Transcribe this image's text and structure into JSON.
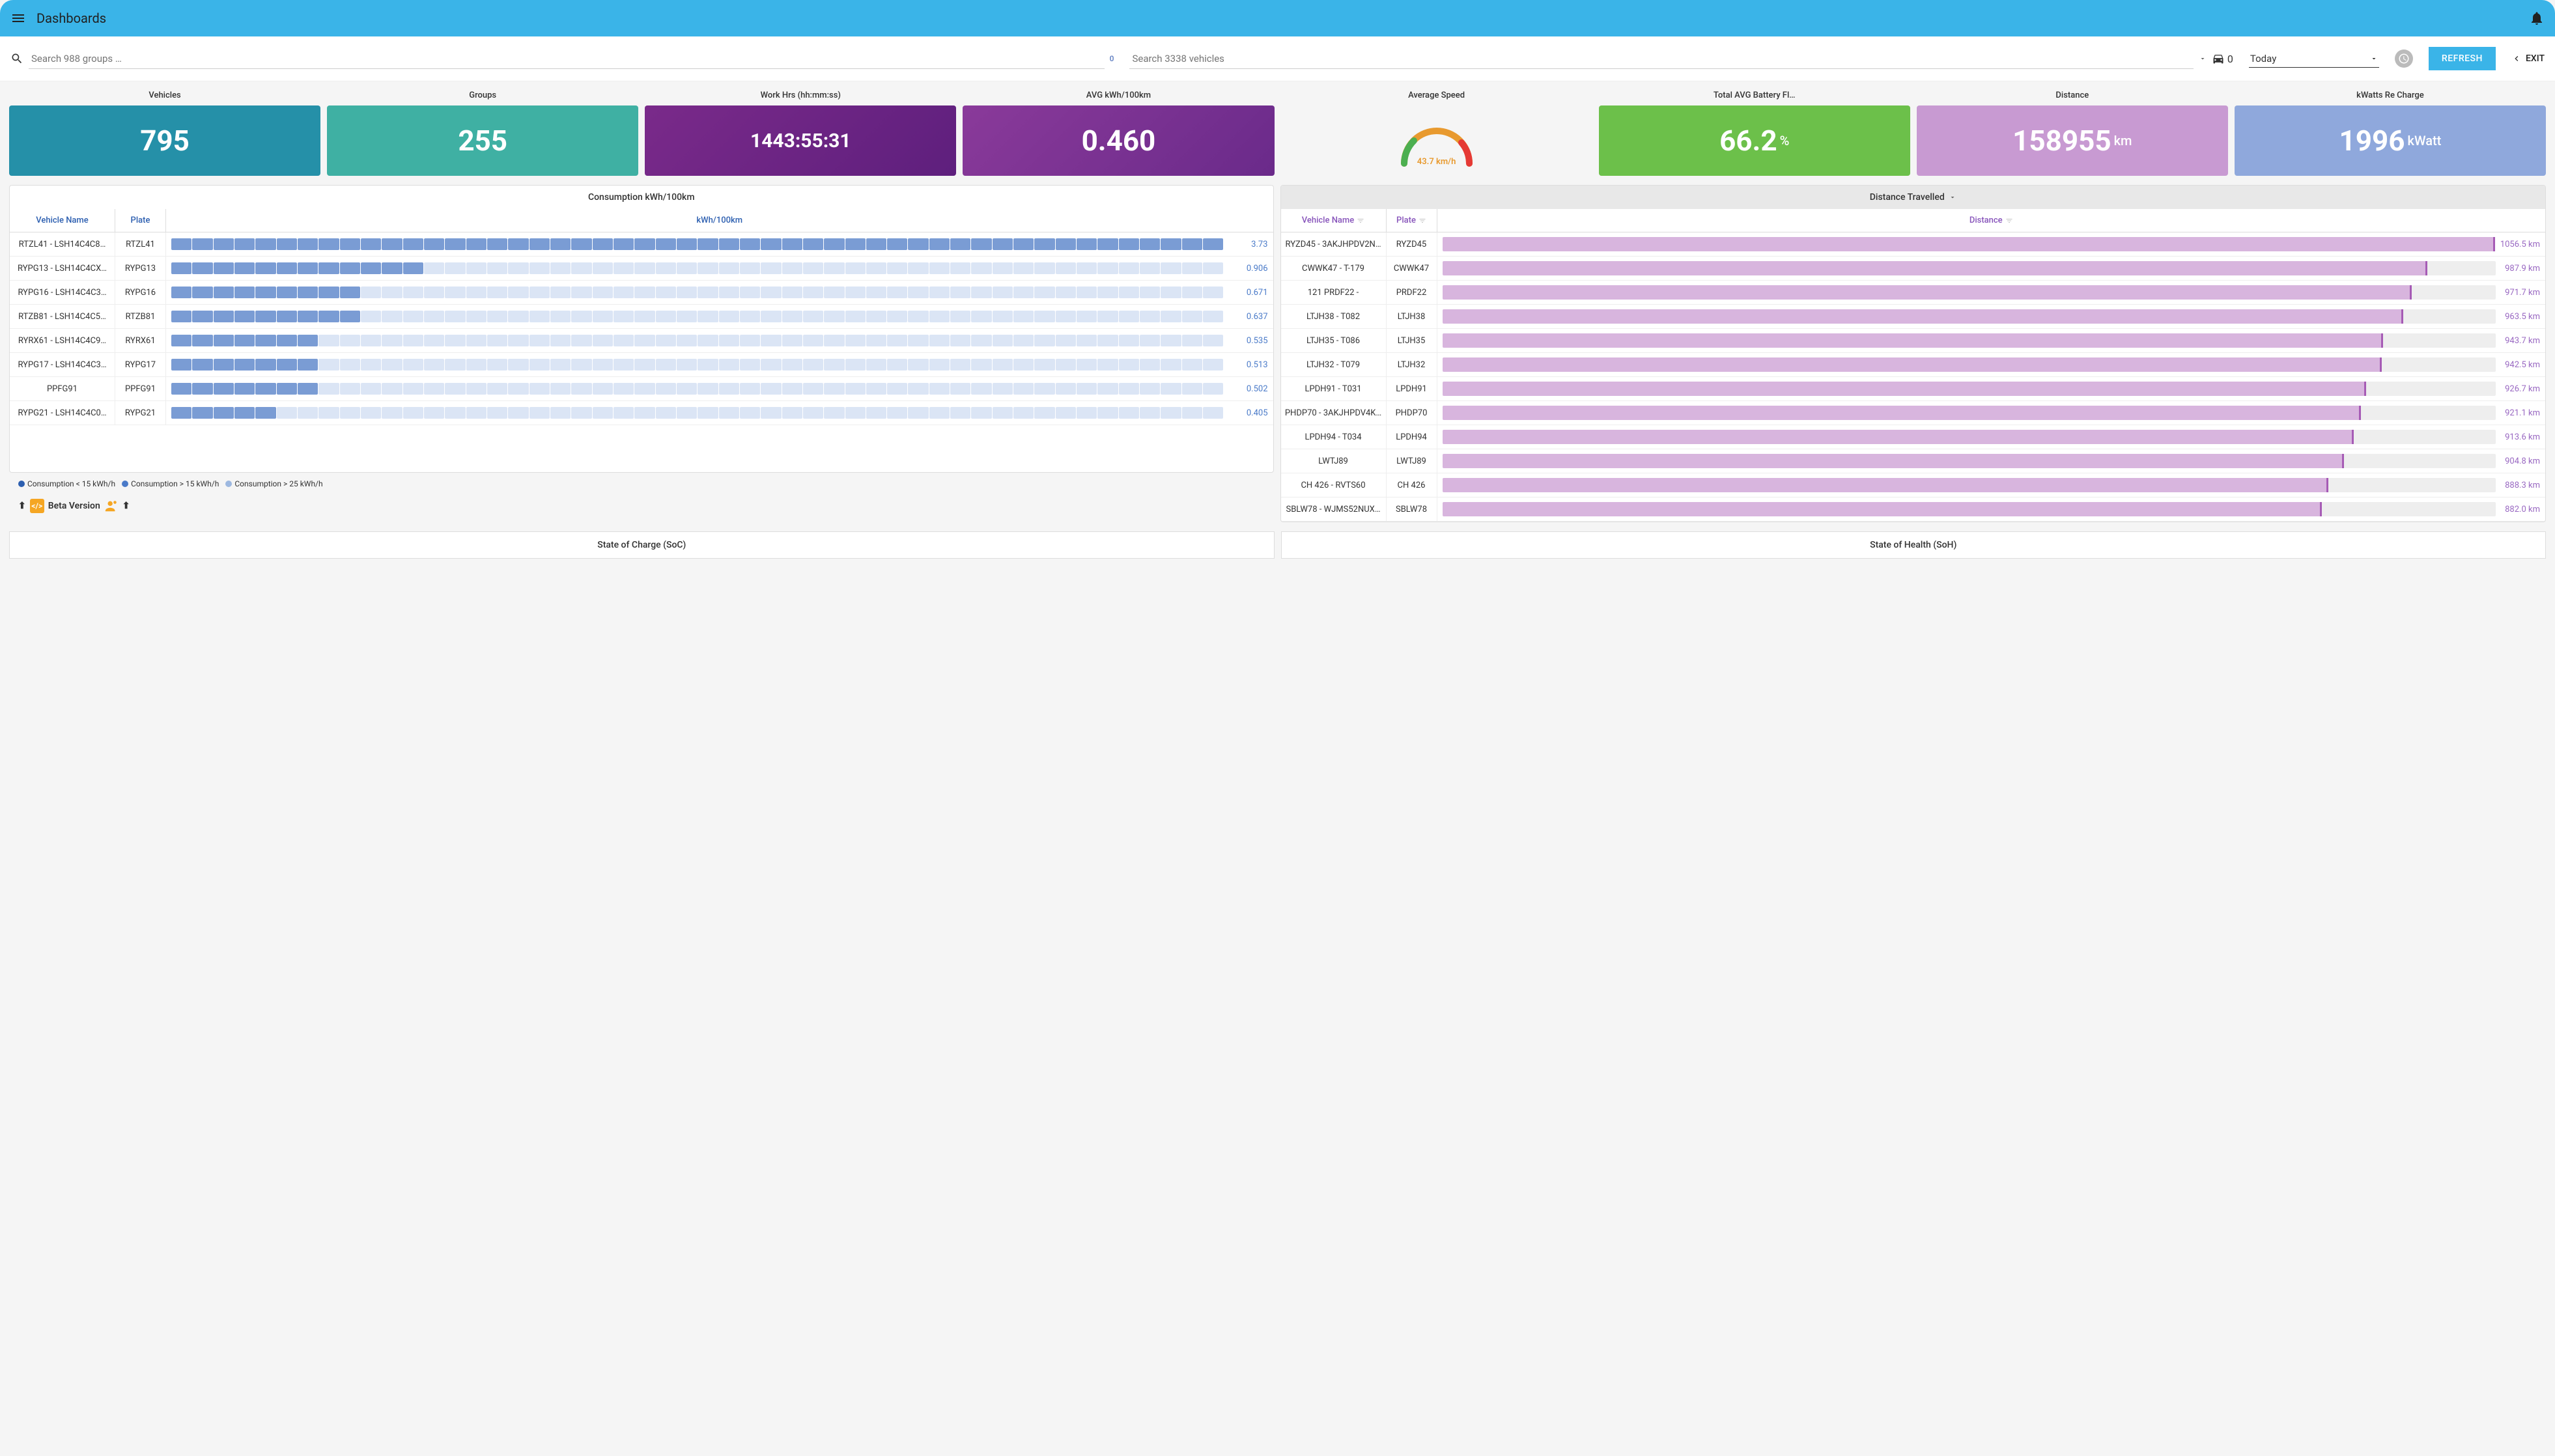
{
  "header": {
    "title": "Dashboards"
  },
  "toolbar": {
    "search_groups_placeholder": "Search 988 groups …",
    "groups_badge": "0",
    "search_vehicles_placeholder": "Search 3338 vehicles",
    "vehicles_badge": "0",
    "period_selected": "Today",
    "refresh_label": "REFRESH",
    "exit_label": "EXIT"
  },
  "kpis": [
    {
      "label": "Vehicles",
      "value": "795",
      "bg": "#2590a8",
      "size": "big"
    },
    {
      "label": "Groups",
      "value": "255",
      "bg": "#3fb0a3",
      "size": "big"
    },
    {
      "label": "Work Hrs (hh:mm:ss)",
      "value": "1443:55:31",
      "bg": "linear-gradient(135deg,#7a2a8a,#5e1f7d)",
      "size": "med"
    },
    {
      "label": "AVG kWh/100km",
      "value": "0.460",
      "bg": "linear-gradient(135deg,#8a3a9a,#6a2a8a)",
      "size": "big"
    },
    {
      "label": "Average Speed",
      "type": "gauge",
      "gauge_text": "43.7 km/h",
      "gauge_pct": 0.44
    },
    {
      "label": "Total AVG Battery Fl…",
      "value": "66.2",
      "unit": "%",
      "bg": "#6cc04a",
      "size": "big"
    },
    {
      "label": "Distance",
      "value": "158955",
      "unit": "km",
      "bg": "#c89ad2",
      "size": "big"
    },
    {
      "label": "kWatts Re Charge",
      "value": "1996",
      "unit": "kWatt",
      "bg": "#8fa8dc",
      "size": "big"
    }
  ],
  "consumption_panel": {
    "title": "Consumption kWh/100km",
    "columns": {
      "name": "Vehicle Name",
      "plate": "Plate",
      "value": "kWh/100km"
    },
    "header_color": "#2d5fb0",
    "max_value": 3.73,
    "segment_count": 50,
    "bar_filled_color": "#7a9cd4",
    "bar_empty_color": "#dbe5f5",
    "value_color": "#4a7ac8",
    "rows": [
      {
        "name": "RTZL41 - LSH14C4C8…",
        "plate": "RTZL41",
        "value": "3.73",
        "fill": 1.0
      },
      {
        "name": "RYPG13 - LSH14C4CX…",
        "plate": "RYPG13",
        "value": "0.906",
        "fill": 0.243
      },
      {
        "name": "RYPG16 - LSH14C4C3…",
        "plate": "RYPG16",
        "value": "0.671",
        "fill": 0.18
      },
      {
        "name": "RTZB81 - LSH14C4C5…",
        "plate": "RTZB81",
        "value": "0.637",
        "fill": 0.171
      },
      {
        "name": "RYRX61 - LSH14C4C9…",
        "plate": "RYRX61",
        "value": "0.535",
        "fill": 0.143
      },
      {
        "name": "RYPG17 - LSH14C4C3…",
        "plate": "RYPG17",
        "value": "0.513",
        "fill": 0.138
      },
      {
        "name": "PPFG91",
        "plate": "PPFG91",
        "value": "0.502",
        "fill": 0.135
      },
      {
        "name": "RYPG21 - LSH14C4C0…",
        "plate": "RYPG21",
        "value": "0.405",
        "fill": 0.109
      }
    ]
  },
  "distance_panel": {
    "title": "Distance Travelled",
    "title_bg": "#e8e8e8",
    "columns": {
      "name": "Vehicle Name",
      "plate": "Plate",
      "value": "Distance"
    },
    "header_color": "#8855bb",
    "max_value": 1056.5,
    "bar_fill_color": "#d8b5de",
    "bar_cap_color": "#a65bb5",
    "bar_bg_color": "#eeeeee",
    "value_color": "#9968c2",
    "rows": [
      {
        "name": "RYZD45 - 3AKJHPDV2N…",
        "plate": "RYZD45",
        "value": "1056.5 km",
        "fill": 1.0
      },
      {
        "name": "CWWK47 - T-179",
        "plate": "CWWK47",
        "value": "987.9 km",
        "fill": 0.935
      },
      {
        "name": "121 PRDF22 -",
        "plate": "PRDF22",
        "value": "971.7 km",
        "fill": 0.92
      },
      {
        "name": "LTJH38 - T082",
        "plate": "LTJH38",
        "value": "963.5 km",
        "fill": 0.912
      },
      {
        "name": "LTJH35 - T086",
        "plate": "LTJH35",
        "value": "943.7 km",
        "fill": 0.893
      },
      {
        "name": "LTJH32 - T079",
        "plate": "LTJH32",
        "value": "942.5 km",
        "fill": 0.892
      },
      {
        "name": "LPDH91 - T031",
        "plate": "LPDH91",
        "value": "926.7 km",
        "fill": 0.877
      },
      {
        "name": "PHDP70 - 3AKJHPDV4K…",
        "plate": "PHDP70",
        "value": "921.1 km",
        "fill": 0.872
      },
      {
        "name": "LPDH94 - T034",
        "plate": "LPDH94",
        "value": "913.6 km",
        "fill": 0.865
      },
      {
        "name": "LWTJ89",
        "plate": "LWTJ89",
        "value": "904.8 km",
        "fill": 0.856
      },
      {
        "name": "CH 426 - RVTS60",
        "plate": "CH 426",
        "value": "888.3 km",
        "fill": 0.841
      },
      {
        "name": "SBLW78 - WJMS52NUX…",
        "plate": "SBLW78",
        "value": "882.0 km",
        "fill": 0.835
      }
    ]
  },
  "legend": {
    "items": [
      {
        "color": "#2d5fb0",
        "label": "Consumption < 15 kWh/h"
      },
      {
        "color": "#4a7ac8",
        "label": "Consumption > 15 kWh/h"
      },
      {
        "color": "#9db8e0",
        "label": "Consumption > 25 kWh/h"
      }
    ]
  },
  "beta": {
    "text": "Beta Version"
  },
  "bottom_sections": {
    "soc": "State of Charge (SoC)",
    "soh": "State of Health (SoH)"
  }
}
